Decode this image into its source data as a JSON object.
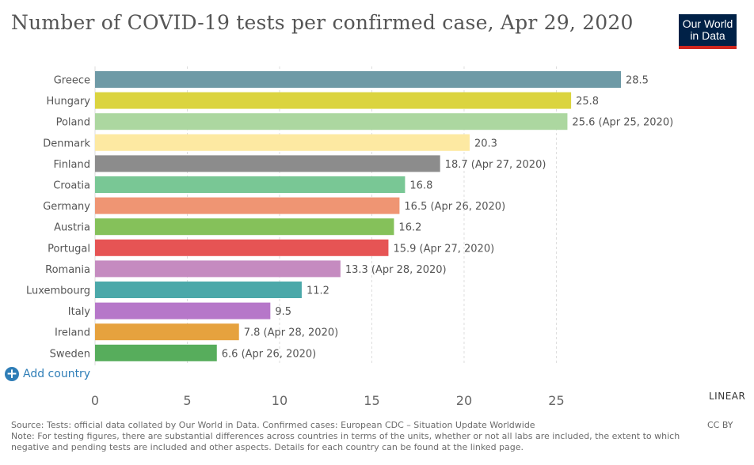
{
  "title": "Number of COVID-19 tests per confirmed case, Apr 29, 2020",
  "logo": {
    "line1": "Our World",
    "line2": "in Data"
  },
  "controls": {
    "add_country": "Add country",
    "scale": "LINEAR",
    "license": "CC BY"
  },
  "footer": {
    "source": "Source: Tests: official data collated by Our World in Data. Confirmed cases: European CDC – Situation Update Worldwide",
    "note_line1": "Note: For testing figures, there are substantial differences across countries in terms of the units, whether or not all labs are included, the extent to which",
    "note_line2": "negative and pending tests are included and other aspects. Details for each country can be found at the linked page."
  },
  "chart_data": {
    "type": "bar",
    "orientation": "horizontal",
    "title": "Number of COVID-19 tests per confirmed case, Apr 29, 2020",
    "xlabel": "",
    "ylabel": "",
    "xlim": [
      0,
      28.5
    ],
    "ticks": [
      0,
      5,
      10,
      15,
      20,
      25
    ],
    "grid": true,
    "bars": [
      {
        "country": "Greece",
        "value": 28.5,
        "label": "28.5",
        "color": "#6e9aa6"
      },
      {
        "country": "Hungary",
        "value": 25.8,
        "label": "25.8",
        "color": "#dbd43f"
      },
      {
        "country": "Poland",
        "value": 25.6,
        "label": "25.6 (Apr 25, 2020)",
        "color": "#acd7a0"
      },
      {
        "country": "Denmark",
        "value": 20.3,
        "label": "20.3",
        "color": "#fde9a2"
      },
      {
        "country": "Finland",
        "value": 18.7,
        "label": "18.7 (Apr 27, 2020)",
        "color": "#8c8c8c"
      },
      {
        "country": "Croatia",
        "value": 16.8,
        "label": "16.8",
        "color": "#79c795"
      },
      {
        "country": "Germany",
        "value": 16.5,
        "label": "16.5 (Apr 26, 2020)",
        "color": "#ef9573"
      },
      {
        "country": "Austria",
        "value": 16.2,
        "label": "16.2",
        "color": "#85c15a"
      },
      {
        "country": "Portugal",
        "value": 15.9,
        "label": "15.9 (Apr 27, 2020)",
        "color": "#e65454"
      },
      {
        "country": "Romania",
        "value": 13.3,
        "label": "13.3 (Apr 28, 2020)",
        "color": "#c58bc0"
      },
      {
        "country": "Luxembourg",
        "value": 11.2,
        "label": "11.2",
        "color": "#4ba8a9"
      },
      {
        "country": "Italy",
        "value": 9.5,
        "label": "9.5",
        "color": "#b677c9"
      },
      {
        "country": "Ireland",
        "value": 7.8,
        "label": "7.8 (Apr 28, 2020)",
        "color": "#e6a23e"
      },
      {
        "country": "Sweden",
        "value": 6.6,
        "label": "6.6 (Apr 26, 2020)",
        "color": "#57ad5c"
      }
    ]
  }
}
